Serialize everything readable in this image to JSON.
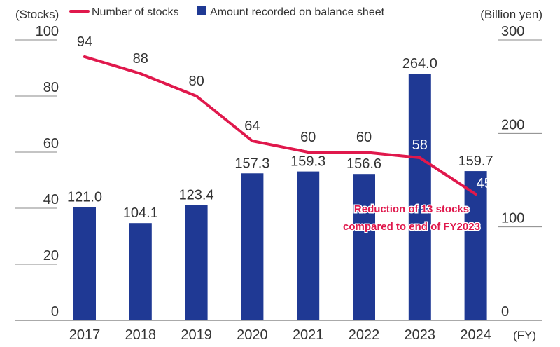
{
  "chart_data": {
    "type": "bar+line",
    "title": "",
    "categories": [
      "2017",
      "2018",
      "2019",
      "2020",
      "2021",
      "2022",
      "2023",
      "2024"
    ],
    "series": [
      {
        "name": "Amount recorded on balance sheet",
        "type": "bar",
        "axis": "right",
        "values": [
          121.0,
          104.1,
          123.4,
          157.3,
          159.3,
          156.6,
          264.0,
          159.7
        ],
        "labels": [
          "121.0",
          "104.1",
          "123.4",
          "157.3",
          "159.3",
          "156.6",
          "264.0",
          "159.7"
        ],
        "color": "#1f3994"
      },
      {
        "name": "Number of stocks",
        "type": "line",
        "axis": "left",
        "values": [
          94,
          88,
          80,
          64,
          60,
          60,
          58,
          45
        ],
        "color": "#e0184c"
      }
    ],
    "left_axis": {
      "label": "(Stocks)",
      "ylim": [
        0,
        100
      ],
      "ticks": [
        "0",
        "20",
        "40",
        "60",
        "80",
        "100"
      ]
    },
    "right_axis": {
      "label": "(Billion yen)",
      "ylim": [
        0,
        300
      ],
      "ticks": [
        "0",
        "100",
        "200",
        "300"
      ]
    },
    "x_axis_unit": "(FY)",
    "legend_position": "top",
    "annotation": {
      "lines": [
        "Reduction of 13 stocks",
        "compared to end of FY2023"
      ],
      "color": "#e0184c"
    },
    "grid": false
  }
}
